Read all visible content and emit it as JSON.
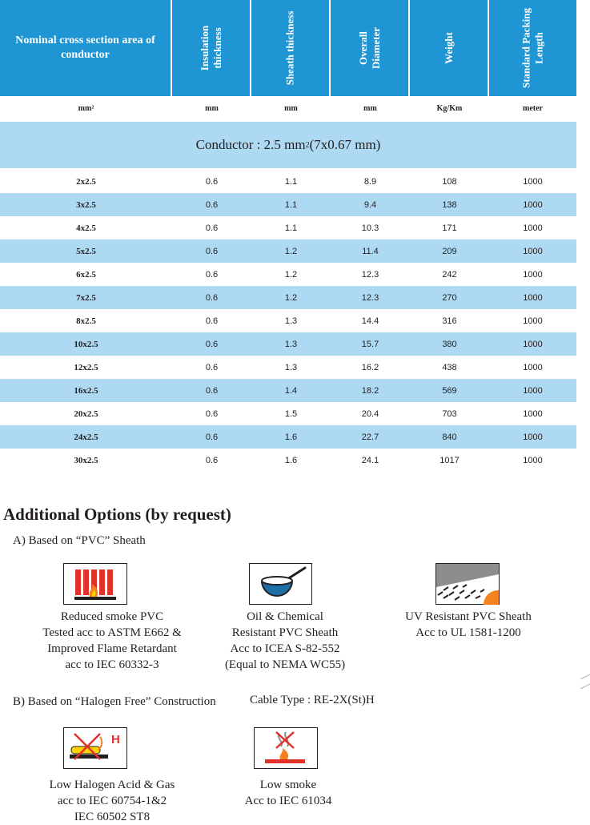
{
  "table": {
    "headers": [
      "Nominal cross section area of conductor",
      "Insulation thickness",
      "Sheath thickness",
      "Overall Diameter",
      "Weight",
      "Standard Packing Length"
    ],
    "units": [
      "mm²",
      "mm",
      "mm",
      "mm",
      "Kg/Km",
      "meter"
    ],
    "conductor_prefix": "Conductor : 2.5 mm",
    "conductor_sup": "2",
    "conductor_suffix": " (7x0.67 mm)",
    "rows": [
      [
        "2x2.5",
        "0.6",
        "1.1",
        "8.9",
        "108",
        "1000"
      ],
      [
        "3x2.5",
        "0.6",
        "1.1",
        "9.4",
        "138",
        "1000"
      ],
      [
        "4x2.5",
        "0.6",
        "1.1",
        "10.3",
        "171",
        "1000"
      ],
      [
        "5x2.5",
        "0.6",
        "1.2",
        "11.4",
        "209",
        "1000"
      ],
      [
        "6x2.5",
        "0.6",
        "1.2",
        "12.3",
        "242",
        "1000"
      ],
      [
        "7x2.5",
        "0.6",
        "1.2",
        "12.3",
        "270",
        "1000"
      ],
      [
        "8x2.5",
        "0.6",
        "1.3",
        "14.4",
        "316",
        "1000"
      ],
      [
        "10x2.5",
        "0.6",
        "1.3",
        "15.7",
        "380",
        "1000"
      ],
      [
        "12x2.5",
        "0.6",
        "1.3",
        "16.2",
        "438",
        "1000"
      ],
      [
        "16x2.5",
        "0.6",
        "1.4",
        "18.2",
        "569",
        "1000"
      ],
      [
        "20x2.5",
        "0.6",
        "1.5",
        "20.4",
        "703",
        "1000"
      ],
      [
        "24x2.5",
        "0.6",
        "1.6",
        "22.7",
        "840",
        "1000"
      ],
      [
        "30x2.5",
        "0.6",
        "1.6",
        "24.1",
        "1017",
        "1000"
      ]
    ]
  },
  "options": {
    "title": "Additional Options (by request)",
    "section_a": "A) Based on “PVC” Sheath",
    "section_b": "B) Based on “Halogen Free” Construction",
    "cable_type": "Cable Type : RE-2X(St)H",
    "pvc_items": [
      {
        "icon": "reduced-smoke-flame-icon",
        "lines": [
          "Reduced smoke PVC",
          "Tested acc to ASTM E662 &",
          "Improved Flame Retardant",
          "acc to IEC 60332-3"
        ]
      },
      {
        "icon": "oil-chemical-icon",
        "lines": [
          "Oil & Chemical",
          "Resistant PVC Sheath",
          "Acc to ICEA S-82-552",
          "(Equal to NEMA WC55)"
        ]
      },
      {
        "icon": "uv-sun-icon",
        "lines": [
          "UV Resistant PVC Sheath",
          "Acc to UL 1581-1200"
        ]
      }
    ],
    "hf_items": [
      {
        "icon": "halogen-acid-icon",
        "icon_letter": "H",
        "lines": [
          "Low Halogen Acid & Gas",
          "acc to IEC 60754-1&2",
          "IEC 60502 ST8"
        ]
      },
      {
        "icon": "low-smoke-icon",
        "lines": [
          "Low smoke",
          "Acc to IEC 61034"
        ]
      }
    ]
  },
  "colors": {
    "header_blue": "#1f95d3",
    "band_blue": "#aed9f3",
    "icon_red": "#e0312b",
    "icon_orange": "#f5821f",
    "icon_yellow": "#ffd200",
    "icon_blue": "#1d6fa5"
  }
}
